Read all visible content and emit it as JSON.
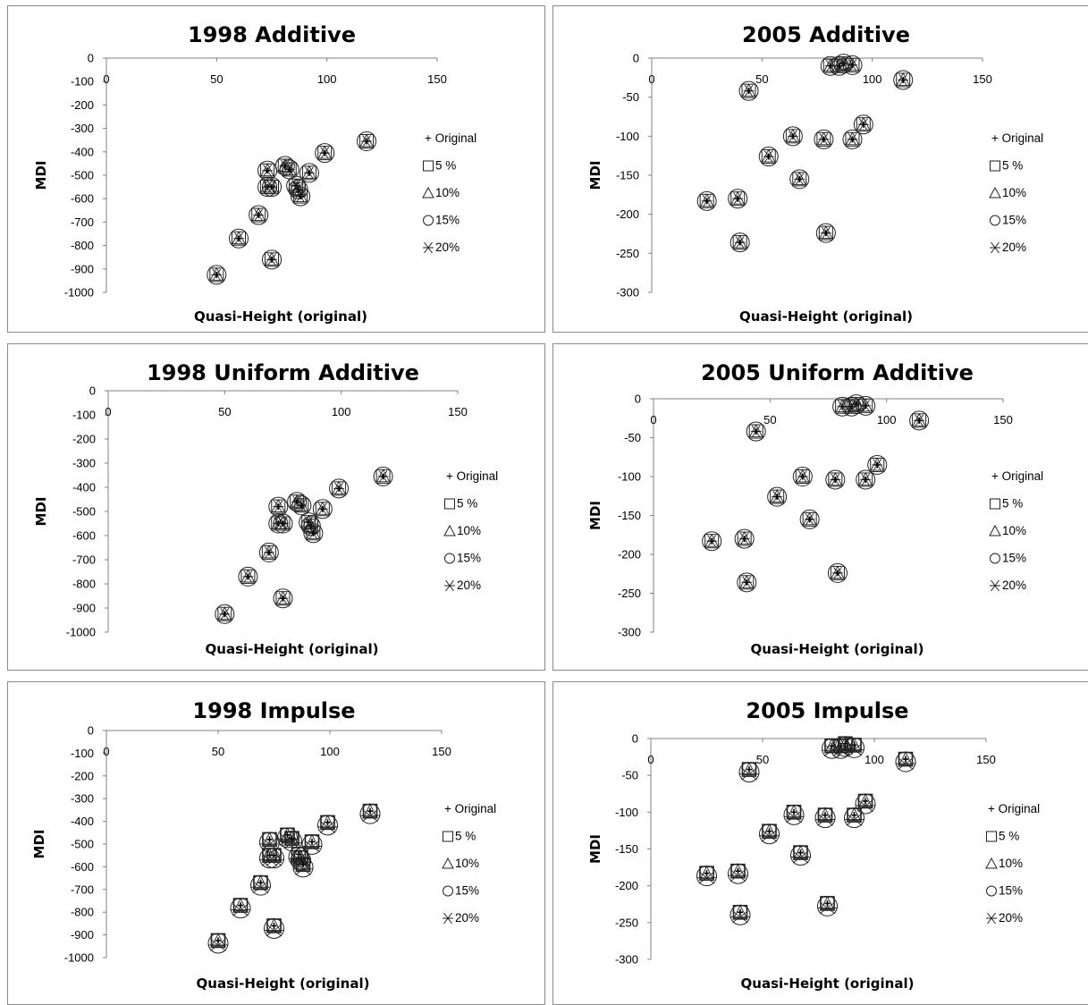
{
  "chart_data": [
    {
      "type": "scatter",
      "title": "1998 Additive",
      "xlabel": "Quasi-Height (original)",
      "ylabel": "MDI",
      "xlim": [
        0,
        150
      ],
      "ylim": [
        -1000,
        0
      ],
      "xticks": [
        "0",
        "50",
        "100",
        "150"
      ],
      "yticks": [
        "0",
        "-100",
        "-200",
        "-300",
        "-400",
        "-500",
        "-600",
        "-700",
        "-800",
        "-900",
        "-1000"
      ],
      "legend": [
        "+ Original",
        "5 %",
        "10%",
        "15%",
        "20%"
      ],
      "legend_position": "right",
      "points": [
        [
          50,
          -925
        ],
        [
          60,
          -770
        ],
        [
          69,
          -670
        ],
        [
          73,
          -480
        ],
        [
          73,
          -550
        ],
        [
          75,
          -550
        ],
        [
          75,
          -860
        ],
        [
          81,
          -460
        ],
        [
          83,
          -475
        ],
        [
          86,
          -545
        ],
        [
          87,
          -560
        ],
        [
          88,
          -590
        ],
        [
          92,
          -490
        ],
        [
          99,
          -405
        ],
        [
          118,
          -355
        ]
      ]
    },
    {
      "type": "scatter",
      "title": "2005 Additive",
      "xlabel": "Quasi-Height (original)",
      "ylabel": "MDI",
      "xlim": [
        0,
        150
      ],
      "ylim": [
        -300,
        0
      ],
      "xticks": [
        "0",
        "50",
        "100",
        "150"
      ],
      "yticks": [
        "0",
        "-50",
        "-100",
        "-150",
        "-200",
        "-250",
        "-300"
      ],
      "legend": [
        "+ Original",
        "5 %",
        "10%",
        "15%",
        "20%"
      ],
      "legend_position": "right",
      "points": [
        [
          25,
          -183
        ],
        [
          39,
          -180
        ],
        [
          40,
          -236
        ],
        [
          44,
          -42
        ],
        [
          53,
          -126
        ],
        [
          64,
          -100
        ],
        [
          67,
          -155
        ],
        [
          78,
          -104
        ],
        [
          79,
          -224
        ],
        [
          81,
          -10
        ],
        [
          85,
          -10
        ],
        [
          87,
          -7
        ],
        [
          91,
          -9
        ],
        [
          91,
          -104
        ],
        [
          96,
          -85
        ],
        [
          114,
          -28
        ]
      ]
    },
    {
      "type": "scatter",
      "title": "1998 Uniform Additive",
      "xlabel": "Quasi-Height (original)",
      "ylabel": "MDI",
      "xlim": [
        0,
        150
      ],
      "ylim": [
        -1000,
        0
      ],
      "xticks": [
        "0",
        "50",
        "100",
        "150"
      ],
      "yticks": [
        "0",
        "-100",
        "-200",
        "-300",
        "-400",
        "-500",
        "-600",
        "-700",
        "-800",
        "-900",
        "-1000"
      ],
      "legend": [
        "+ Original",
        "5 %",
        "10%",
        "15%",
        "20%"
      ],
      "legend_position": "right",
      "points": [
        [
          50,
          -925
        ],
        [
          60,
          -770
        ],
        [
          69,
          -670
        ],
        [
          73,
          -480
        ],
        [
          73,
          -550
        ],
        [
          75,
          -550
        ],
        [
          75,
          -860
        ],
        [
          81,
          -460
        ],
        [
          83,
          -475
        ],
        [
          86,
          -545
        ],
        [
          87,
          -560
        ],
        [
          88,
          -590
        ],
        [
          92,
          -490
        ],
        [
          99,
          -405
        ],
        [
          118,
          -355
        ]
      ]
    },
    {
      "type": "scatter",
      "title": "2005 Uniform Additive",
      "xlabel": "Quasi-Height (original)",
      "ylabel": "MDI",
      "xlim": [
        0,
        150
      ],
      "ylim": [
        -300,
        0
      ],
      "xticks": [
        "0",
        "50",
        "100",
        "150"
      ],
      "yticks": [
        "0",
        "-50",
        "-100",
        "-150",
        "-200",
        "-250",
        "-300"
      ],
      "legend": [
        "+ Original",
        "5 %",
        "10%",
        "15%",
        "20%"
      ],
      "legend_position": "right",
      "points": [
        [
          25,
          -183
        ],
        [
          39,
          -180
        ],
        [
          40,
          -236
        ],
        [
          44,
          -42
        ],
        [
          53,
          -126
        ],
        [
          64,
          -100
        ],
        [
          67,
          -155
        ],
        [
          78,
          -104
        ],
        [
          79,
          -224
        ],
        [
          81,
          -10
        ],
        [
          85,
          -10
        ],
        [
          87,
          -7
        ],
        [
          91,
          -9
        ],
        [
          91,
          -104
        ],
        [
          96,
          -85
        ],
        [
          114,
          -28
        ]
      ]
    },
    {
      "type": "scatter",
      "title": "1998 Impulse",
      "xlabel": "Quasi-Height (original)",
      "ylabel": "MDI",
      "xlim": [
        0,
        150
      ],
      "ylim": [
        -1000,
        0
      ],
      "xticks": [
        "0",
        "50",
        "100",
        "150"
      ],
      "yticks": [
        "0",
        "-100",
        "-200",
        "-300",
        "-400",
        "-500",
        "-600",
        "-700",
        "-800",
        "-900",
        "-1000"
      ],
      "legend": [
        "+ Original",
        "5 %",
        "10%",
        "15%",
        "20%"
      ],
      "legend_position": "right",
      "points": [
        [
          50,
          -925
        ],
        [
          60,
          -770
        ],
        [
          69,
          -670
        ],
        [
          73,
          -480
        ],
        [
          73,
          -550
        ],
        [
          75,
          -550
        ],
        [
          75,
          -860
        ],
        [
          81,
          -460
        ],
        [
          83,
          -475
        ],
        [
          86,
          -545
        ],
        [
          87,
          -560
        ],
        [
          88,
          -590
        ],
        [
          92,
          -490
        ],
        [
          99,
          -405
        ],
        [
          118,
          -355
        ]
      ]
    },
    {
      "type": "scatter",
      "title": "2005 Impulse",
      "xlabel": "Quasi-Height (original)",
      "ylabel": "MDI",
      "xlim": [
        0,
        150
      ],
      "ylim": [
        -300,
        0
      ],
      "xticks": [
        "0",
        "50",
        "100",
        "150"
      ],
      "yticks": [
        "0",
        "-50",
        "-100",
        "-150",
        "-200",
        "-250",
        "-300"
      ],
      "legend": [
        "+ Original",
        "5 %",
        "10%",
        "15%",
        "20%"
      ],
      "legend_position": "right",
      "points": [
        [
          25,
          -183
        ],
        [
          39,
          -180
        ],
        [
          40,
          -236
        ],
        [
          44,
          -42
        ],
        [
          53,
          -126
        ],
        [
          64,
          -100
        ],
        [
          67,
          -155
        ],
        [
          78,
          -104
        ],
        [
          79,
          -224
        ],
        [
          81,
          -10
        ],
        [
          85,
          -10
        ],
        [
          87,
          -7
        ],
        [
          91,
          -9
        ],
        [
          91,
          -104
        ],
        [
          96,
          -85
        ],
        [
          114,
          -28
        ]
      ]
    }
  ]
}
